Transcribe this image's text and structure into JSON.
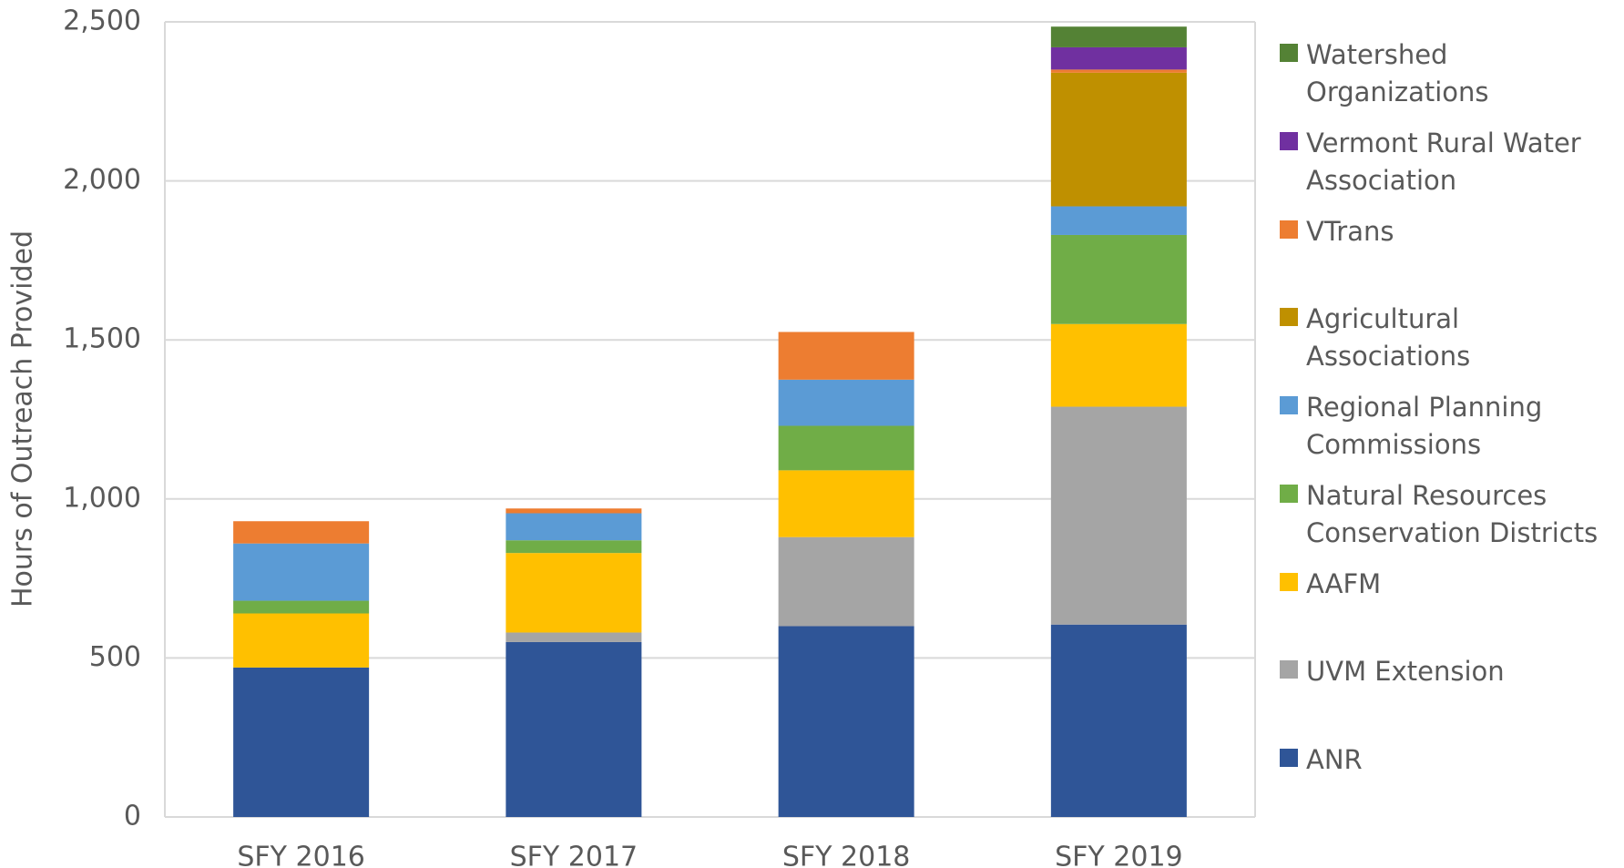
{
  "chart_data": {
    "type": "stacked_bar",
    "y_label": "Hours of Outreach Provided",
    "categories": [
      "SFY 2016",
      "SFY 2017",
      "SFY 2018",
      "SFY 2019"
    ],
    "series": [
      {
        "name": "ANR",
        "color": "#2f5597",
        "values": [
          470,
          550,
          600,
          605
        ]
      },
      {
        "name": "UVM Extension",
        "color": "#a5a5a5",
        "values": [
          0,
          30,
          280,
          685
        ]
      },
      {
        "name": "AAFM",
        "color": "#ffc000",
        "values": [
          170,
          250,
          210,
          260
        ]
      },
      {
        "name": "Natural Resources Conservation Districts",
        "color": "#70ad47",
        "values": [
          40,
          40,
          140,
          280
        ]
      },
      {
        "name": "Regional Planning Commissions",
        "color": "#5b9bd5",
        "values": [
          180,
          85,
          145,
          90
        ]
      },
      {
        "name": "Agricultural Associations",
        "color": "#bf9000",
        "values": [
          0,
          0,
          0,
          420
        ]
      },
      {
        "name": "VTrans",
        "color": "#ed7d31",
        "values": [
          70,
          15,
          150,
          10
        ]
      },
      {
        "name": "Vermont Rural Water Association",
        "color": "#7030a0",
        "values": [
          0,
          0,
          0,
          70
        ]
      },
      {
        "name": "Watershed Organizations",
        "color": "#548235",
        "values": [
          0,
          0,
          0,
          65
        ]
      }
    ],
    "ylim": [
      0,
      2500
    ],
    "yticks": [
      0,
      500,
      {
        "value": 1000,
        "label": "1,000"
      },
      {
        "value": 1500,
        "label": "1,500"
      },
      {
        "value": 2000,
        "label": "2,000"
      },
      {
        "value": 2500,
        "label": "2,500"
      }
    ],
    "grid": true,
    "legend": "right"
  }
}
